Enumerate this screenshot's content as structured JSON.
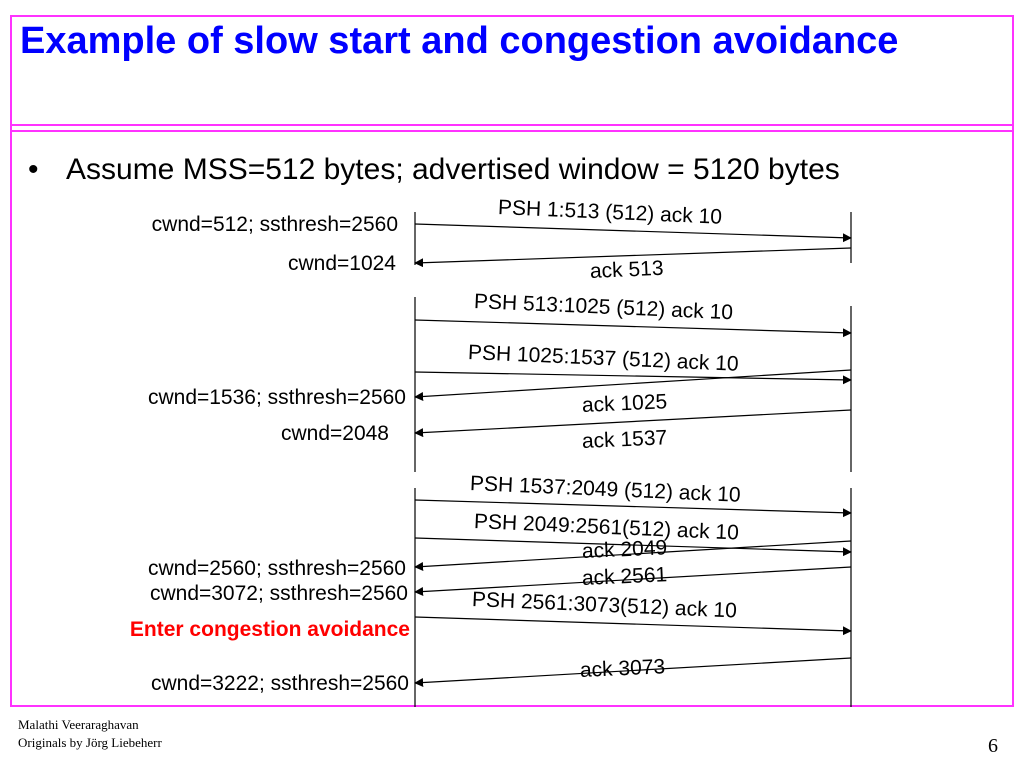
{
  "slide": {
    "title": "Example of slow start and congestion avoidance",
    "bullet_marker": "•",
    "bullet": "Assume MSS=512 bytes; advertised window = 5120 bytes",
    "footer_author": "Malathi Veeraraghavan",
    "footer_credit": "Originals by Jörg Liebeherr",
    "page_number": "6",
    "colors": {
      "title": "#0000ff",
      "frame": "#ff33ff",
      "note": "#ff0000"
    }
  },
  "sender_states": [
    "cwnd=512; ssthresh=2560",
    "cwnd=1024",
    "cwnd=1536; ssthresh=2560",
    "cwnd=2048",
    "cwnd=2560; ssthresh=2560",
    "cwnd=3072; ssthresh=2560",
    "Enter congestion avoidance",
    "cwnd=3222; ssthresh=2560"
  ],
  "segments": [
    "PSH 1:513 (512) ack 10",
    "ack 513",
    "PSH 513:1025 (512) ack 10",
    "PSH 1025:1537 (512) ack 10",
    "ack 1025",
    "ack 1537",
    "PSH 1537:2049 (512) ack 10",
    "PSH 2049:2561(512) ack 10",
    "ack 2049",
    "ack 2561",
    "PSH 2561:3073(512) ack 10",
    "ack 3073"
  ]
}
